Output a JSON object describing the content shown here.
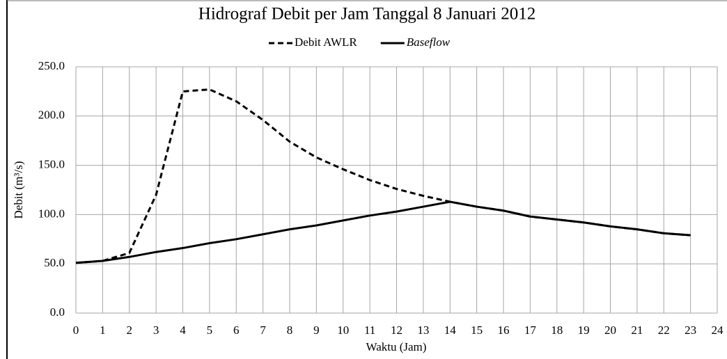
{
  "chart_data": {
    "type": "line",
    "title": "Hidrograf Debit per Jam Tanggal 8 Januari 2012",
    "xlabel": "Waktu (Jam)",
    "ylabel": "Debit (m³/s)",
    "x": [
      0,
      1,
      2,
      3,
      4,
      5,
      6,
      7,
      8,
      9,
      10,
      11,
      12,
      13,
      14,
      15,
      16,
      17,
      18,
      19,
      20,
      21,
      22,
      23
    ],
    "series": [
      {
        "name": "Debit AWLR",
        "color": "#000000",
        "dashed": true,
        "italic": false,
        "values": [
          51,
          53,
          61,
          120,
          225,
          227,
          215,
          196,
          174,
          158,
          146,
          135,
          126,
          119,
          113,
          108,
          104,
          98,
          95,
          92,
          88,
          85,
          81,
          79
        ]
      },
      {
        "name": "Baseflow",
        "color": "#000000",
        "dashed": false,
        "italic": true,
        "values": [
          51,
          53,
          57,
          62,
          66,
          71,
          75,
          80,
          85,
          89,
          94,
          99,
          103,
          108,
          113,
          108,
          104,
          98,
          95,
          92,
          88,
          85,
          81,
          79
        ]
      }
    ],
    "xlim": [
      0,
      24
    ],
    "xticks": [
      0,
      1,
      2,
      3,
      4,
      5,
      6,
      7,
      8,
      9,
      10,
      11,
      12,
      13,
      14,
      15,
      16,
      17,
      18,
      19,
      20,
      21,
      22,
      23,
      24
    ],
    "ylim": [
      0,
      250
    ],
    "yticks": [
      {
        "value": 0,
        "label": "0.0"
      },
      {
        "value": 50,
        "label": "50.0"
      },
      {
        "value": 100,
        "label": "100.0"
      },
      {
        "value": 150,
        "label": "150.0"
      },
      {
        "value": 200,
        "label": "200.0"
      },
      {
        "value": 250,
        "label": "250.0"
      }
    ],
    "grid": true,
    "legend": "top"
  }
}
